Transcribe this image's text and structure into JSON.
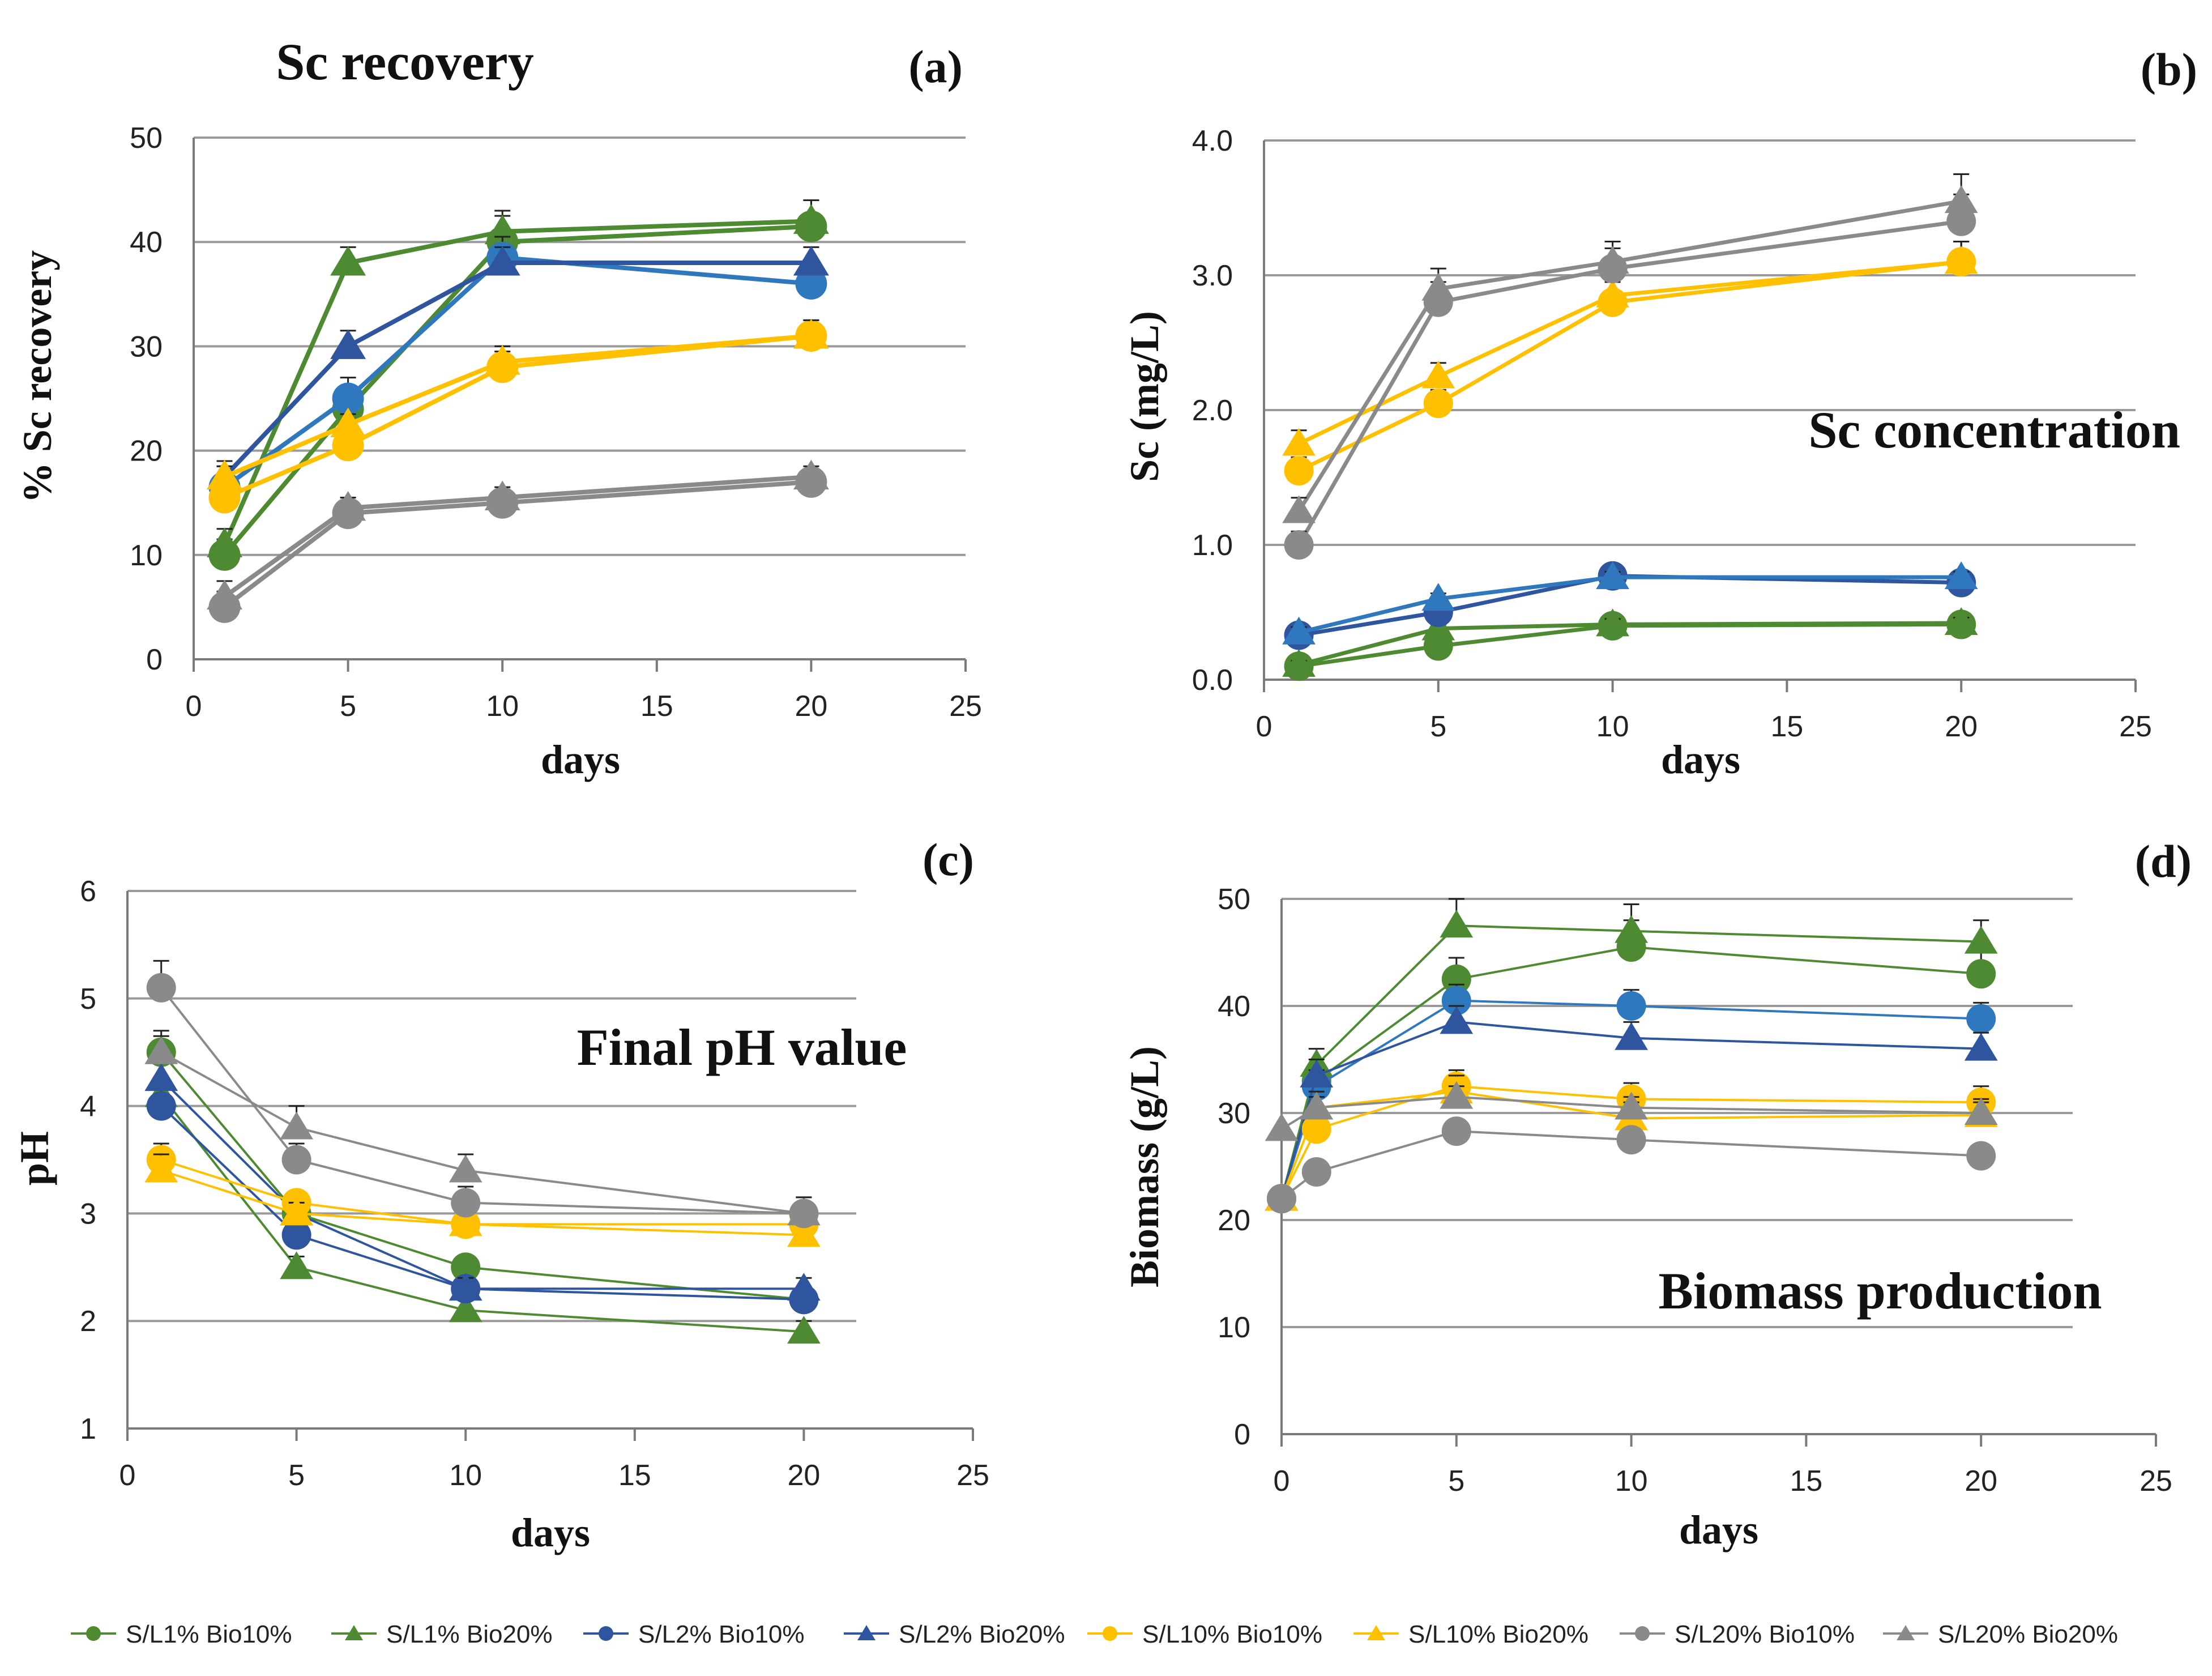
{
  "colors": {
    "green": "#4E8A32",
    "dark_blue": "#2E559E",
    "light_blue": "#2F78BE",
    "yellow": "#FFC000",
    "gray": "#8A8A8A",
    "grid": "#9A9A9A"
  },
  "legend": [
    {
      "label": "S/L1% Bio10%",
      "color": "#4E8A32",
      "marker": "circle"
    },
    {
      "label": "S/L1% Bio20%",
      "color": "#4E8A32",
      "marker": "triangle"
    },
    {
      "label": "S/L2% Bio10%",
      "color": "#2E559E",
      "marker": "circle"
    },
    {
      "label": "S/L2% Bio20%",
      "color": "#2E559E",
      "marker": "triangle"
    },
    {
      "label": "S/L10% Bio10%",
      "color": "#FFC000",
      "marker": "circle"
    },
    {
      "label": "S/L10% Bio20%",
      "color": "#FFC000",
      "marker": "triangle"
    },
    {
      "label": "S/L20% Bio10%",
      "color": "#8A8A8A",
      "marker": "circle"
    },
    {
      "label": "S/L20% Bio20%",
      "color": "#8A8A8A",
      "marker": "triangle"
    }
  ],
  "chart_data": [
    {
      "id": "a",
      "panel_label": "(a)",
      "type": "line",
      "title": "Sc recovery",
      "xlabel": "days",
      "ylabel": "% Sc recovery",
      "xlim": [
        0,
        25
      ],
      "ylim": [
        0,
        50
      ],
      "xticks": [
        "0",
        "5",
        "10",
        "15",
        "20",
        "25"
      ],
      "yticks": [
        "0",
        "10",
        "20",
        "30",
        "40",
        "50"
      ],
      "grid": true,
      "series": [
        {
          "name": "S/L1% Bio10%",
          "color": "#4E8A32",
          "marker": "circle",
          "x": [
            1,
            5,
            10,
            20
          ],
          "y": [
            10,
            24,
            40,
            41.5
          ],
          "err": [
            1.5,
            1.5,
            2.5,
            2.5
          ]
        },
        {
          "name": "S/L1% Bio20%",
          "color": "#4E8A32",
          "marker": "triangle",
          "x": [
            1,
            5,
            10,
            20
          ],
          "y": [
            11,
            38,
            41,
            42
          ],
          "err": [
            1.5,
            1.5,
            2,
            2
          ]
        },
        {
          "name": "S/L2% Bio10%",
          "color": "#2F78BE",
          "marker": "circle",
          "x": [
            1,
            5,
            10,
            20
          ],
          "y": [
            16.5,
            25,
            38.5,
            36
          ],
          "err": [
            2,
            2,
            2,
            2
          ]
        },
        {
          "name": "S/L2% Bio20%",
          "color": "#2E559E",
          "marker": "triangle",
          "x": [
            1,
            5,
            10,
            20
          ],
          "y": [
            17.5,
            30,
            38,
            38
          ],
          "err": [
            1.5,
            1.5,
            1.5,
            1.5
          ]
        },
        {
          "name": "S/L10% Bio10%",
          "color": "#FFC000",
          "marker": "circle",
          "x": [
            1,
            5,
            10,
            20
          ],
          "y": [
            15.5,
            20.5,
            28,
            31
          ],
          "err": [
            1,
            1,
            1.5,
            1.5
          ]
        },
        {
          "name": "S/L10% Bio20%",
          "color": "#FFC000",
          "marker": "triangle",
          "x": [
            1,
            5,
            10,
            20
          ],
          "y": [
            17.5,
            22.5,
            28.5,
            31
          ],
          "err": [
            1,
            1,
            1.5,
            1.5
          ]
        },
        {
          "name": "S/L20% Bio10%",
          "color": "#8A8A8A",
          "marker": "circle",
          "x": [
            1,
            5,
            10,
            20
          ],
          "y": [
            5,
            14,
            15,
            17
          ],
          "err": [
            1.5,
            1,
            1,
            1
          ]
        },
        {
          "name": "S/L20% Bio20%",
          "color": "#8A8A8A",
          "marker": "triangle",
          "x": [
            1,
            5,
            10,
            20
          ],
          "y": [
            6,
            14.5,
            15.5,
            17.5
          ],
          "err": [
            1.5,
            1,
            1,
            1
          ]
        }
      ]
    },
    {
      "id": "b",
      "panel_label": "(b)",
      "type": "line",
      "title": "Sc concentration",
      "xlabel": "days",
      "ylabel": "Sc (mg/L)",
      "xlim": [
        0,
        25
      ],
      "ylim": [
        0,
        4
      ],
      "xticks": [
        "0",
        "5",
        "10",
        "15",
        "20",
        "25"
      ],
      "yticks": [
        "0.0",
        "1.0",
        "2.0",
        "3.0",
        "4.0"
      ],
      "grid": true,
      "series": [
        {
          "name": "S/L1% Bio10%",
          "color": "#4E8A32",
          "marker": "circle",
          "x": [
            1,
            5,
            10,
            20
          ],
          "y": [
            0.1,
            0.25,
            0.4,
            0.41
          ],
          "err": [
            0.03,
            0.03,
            0.04,
            0.04
          ]
        },
        {
          "name": "S/L1% Bio20%",
          "color": "#4E8A32",
          "marker": "triangle",
          "x": [
            1,
            5,
            10,
            20
          ],
          "y": [
            0.11,
            0.38,
            0.41,
            0.42
          ],
          "err": [
            0.03,
            0.03,
            0.04,
            0.04
          ]
        },
        {
          "name": "S/L2% Bio10%",
          "color": "#2E559E",
          "marker": "circle",
          "x": [
            1,
            5,
            10,
            20
          ],
          "y": [
            0.33,
            0.5,
            0.77,
            0.72
          ],
          "err": [
            0.04,
            0.04,
            0.04,
            0.04
          ]
        },
        {
          "name": "S/L2% Bio20%",
          "color": "#2F78BE",
          "marker": "triangle",
          "x": [
            1,
            5,
            10,
            20
          ],
          "y": [
            0.35,
            0.6,
            0.76,
            0.76
          ],
          "err": [
            0.04,
            0.04,
            0.04,
            0.04
          ]
        },
        {
          "name": "S/L10% Bio10%",
          "color": "#FFC000",
          "marker": "circle",
          "x": [
            1,
            5,
            10,
            20
          ],
          "y": [
            1.55,
            2.05,
            2.8,
            3.1
          ],
          "err": [
            0.1,
            0.1,
            0.15,
            0.15
          ]
        },
        {
          "name": "S/L10% Bio20%",
          "color": "#FFC000",
          "marker": "triangle",
          "x": [
            1,
            5,
            10,
            20
          ],
          "y": [
            1.75,
            2.25,
            2.85,
            3.1
          ],
          "err": [
            0.1,
            0.1,
            0.15,
            0.15
          ]
        },
        {
          "name": "S/L20% Bio10%",
          "color": "#8A8A8A",
          "marker": "circle",
          "x": [
            1,
            5,
            10,
            20
          ],
          "y": [
            1.0,
            2.8,
            3.05,
            3.4
          ],
          "err": [
            0.1,
            0.15,
            0.15,
            0.2
          ]
        },
        {
          "name": "S/L20% Bio20%",
          "color": "#8A8A8A",
          "marker": "triangle",
          "x": [
            1,
            5,
            10,
            20
          ],
          "y": [
            1.25,
            2.9,
            3.1,
            3.55
          ],
          "err": [
            0.1,
            0.15,
            0.15,
            0.2
          ]
        }
      ]
    },
    {
      "id": "c",
      "panel_label": "(c)",
      "type": "line",
      "title": "Final pH value",
      "xlabel": "days",
      "ylabel": "pH",
      "xlim": [
        0,
        25
      ],
      "ylim": [
        1,
        6
      ],
      "xticks": [
        "0",
        "5",
        "10",
        "15",
        "20",
        "25"
      ],
      "yticks": [
        "1",
        "2",
        "3",
        "4",
        "5",
        "6"
      ],
      "grid": true,
      "series": [
        {
          "name": "S/L1% Bio10%",
          "color": "#4E8A32",
          "marker": "circle",
          "x": [
            1,
            5,
            10,
            20
          ],
          "y": [
            4.5,
            3.0,
            2.5,
            2.2
          ],
          "err": [
            0.15,
            0.1,
            0.1,
            0.1
          ]
        },
        {
          "name": "S/L1% Bio20%",
          "color": "#4E8A32",
          "marker": "triangle",
          "x": [
            1,
            5,
            10,
            20
          ],
          "y": [
            4.1,
            2.5,
            2.1,
            1.9
          ],
          "err": [
            0.15,
            0.1,
            0.1,
            0.1
          ]
        },
        {
          "name": "S/L2% Bio10%",
          "color": "#2E559E",
          "marker": "circle",
          "x": [
            1,
            5,
            10,
            20
          ],
          "y": [
            4.0,
            2.8,
            2.3,
            2.2
          ],
          "err": [
            0.15,
            0.1,
            0.1,
            0.1
          ]
        },
        {
          "name": "S/L2% Bio20%",
          "color": "#2E559E",
          "marker": "triangle",
          "x": [
            1,
            5,
            10,
            20
          ],
          "y": [
            4.25,
            3.0,
            2.3,
            2.3
          ],
          "err": [
            0.15,
            0.1,
            0.1,
            0.1
          ]
        },
        {
          "name": "S/L10% Bio10%",
          "color": "#FFC000",
          "marker": "circle",
          "x": [
            1,
            5,
            10,
            20
          ],
          "y": [
            3.5,
            3.1,
            2.9,
            2.9
          ],
          "err": [
            0.15,
            0.1,
            0.1,
            0.1
          ]
        },
        {
          "name": "S/L10% Bio20%",
          "color": "#FFC000",
          "marker": "triangle",
          "x": [
            1,
            5,
            10,
            20
          ],
          "y": [
            3.4,
            3.0,
            2.9,
            2.8
          ],
          "err": [
            0.15,
            0.1,
            0.1,
            0.1
          ]
        },
        {
          "name": "S/L20% Bio10%",
          "color": "#8A8A8A",
          "marker": "circle",
          "x": [
            1,
            5,
            10,
            20
          ],
          "y": [
            5.1,
            3.5,
            3.1,
            3.0
          ],
          "err": [
            0.25,
            0.15,
            0.15,
            0.15
          ]
        },
        {
          "name": "S/L20% Bio20%",
          "color": "#8A8A8A",
          "marker": "triangle",
          "x": [
            1,
            5,
            10,
            20
          ],
          "y": [
            4.5,
            3.8,
            3.4,
            3.0
          ],
          "err": [
            0.2,
            0.2,
            0.15,
            0.15
          ]
        }
      ]
    },
    {
      "id": "d",
      "panel_label": "(d)",
      "type": "line",
      "title": "Biomass production",
      "xlabel": "days",
      "ylabel": "Biomass (g/L)",
      "xlim": [
        0,
        25
      ],
      "ylim": [
        0,
        50
      ],
      "xticks": [
        "0",
        "5",
        "10",
        "15",
        "20",
        "25"
      ],
      "yticks": [
        "0",
        "10",
        "20",
        "30",
        "40",
        "50"
      ],
      "grid": true,
      "series": [
        {
          "name": "S/L1% Bio10%",
          "color": "#4E8A32",
          "marker": "circle",
          "x": [
            0,
            1,
            5,
            10,
            20
          ],
          "y": [
            22,
            33,
            42.5,
            45.5,
            43
          ],
          "err": [
            0,
            1.5,
            2,
            2.5,
            2
          ]
        },
        {
          "name": "S/L1% Bio20%",
          "color": "#4E8A32",
          "marker": "triangle",
          "x": [
            0,
            1,
            5,
            10,
            20
          ],
          "y": [
            22,
            34.5,
            47.5,
            47,
            46
          ],
          "err": [
            0,
            1.5,
            2.5,
            2.5,
            2
          ]
        },
        {
          "name": "S/L2% Bio10%",
          "color": "#2F78BE",
          "marker": "circle",
          "x": [
            0,
            1,
            5,
            10,
            20
          ],
          "y": [
            22,
            32.5,
            40.5,
            40,
            38.8
          ],
          "err": [
            0,
            1.5,
            1.5,
            1.5,
            1.5
          ]
        },
        {
          "name": "S/L2% Bio20%",
          "color": "#2E559E",
          "marker": "triangle",
          "x": [
            0,
            1,
            5,
            10,
            20
          ],
          "y": [
            22,
            33.5,
            38.5,
            37,
            36
          ],
          "err": [
            0,
            1.5,
            1.5,
            1.5,
            1.5
          ]
        },
        {
          "name": "S/L10% Bio10%",
          "color": "#FFC000",
          "marker": "circle",
          "x": [
            0,
            1,
            5,
            10,
            20
          ],
          "y": [
            22,
            28.5,
            32.5,
            31.3,
            31
          ],
          "err": [
            0,
            1.5,
            1.5,
            1.5,
            1.5
          ]
        },
        {
          "name": "S/L10% Bio20%",
          "color": "#FFC000",
          "marker": "triangle",
          "x": [
            0,
            1,
            5,
            10,
            20
          ],
          "y": [
            22,
            30.5,
            32,
            29.5,
            29.8
          ],
          "err": [
            0,
            1.5,
            1.5,
            1.5,
            1.5
          ]
        },
        {
          "name": "S/L20% Bio10%",
          "color": "#8A8A8A",
          "marker": "circle",
          "x": [
            0,
            1,
            5,
            10,
            20
          ],
          "y": [
            22,
            24.5,
            28.3,
            27.5,
            26
          ],
          "err": [
            0,
            1,
            1,
            1,
            1
          ]
        },
        {
          "name": "S/L20% Bio20%",
          "color": "#8A8A8A",
          "marker": "triangle",
          "x": [
            0,
            1,
            5,
            10,
            20
          ],
          "y": [
            28.5,
            30.5,
            31.5,
            30.5,
            30
          ],
          "err": [
            0,
            1,
            1,
            1,
            1
          ]
        }
      ]
    }
  ]
}
